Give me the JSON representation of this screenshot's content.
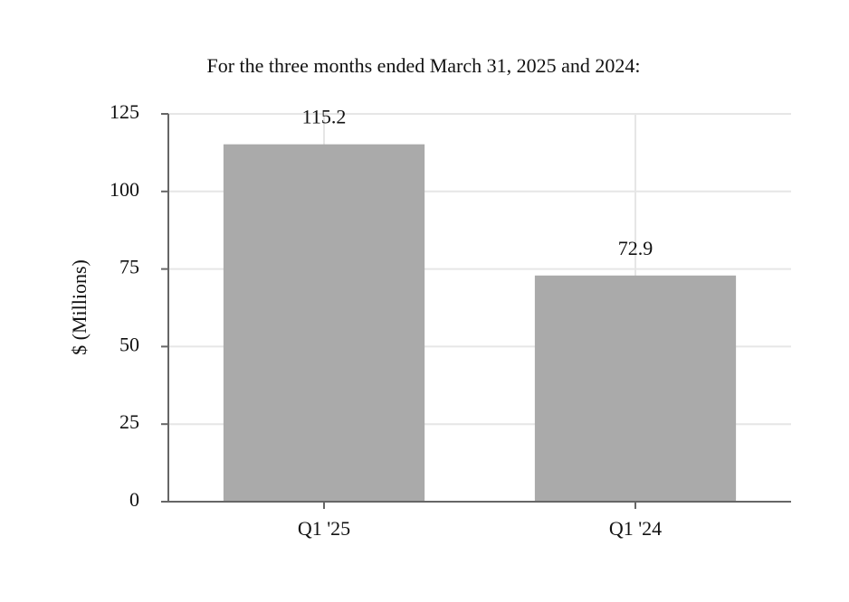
{
  "chart_data": {
    "type": "bar",
    "title": "For the three months ended March 31, 2025 and 2024:",
    "y_label": "$ (Millions)",
    "categories": [
      "Q1 '25",
      "Q1 '24"
    ],
    "values": [
      115.2,
      72.9
    ],
    "color": "#aaaaaa",
    "ylim": [
      0,
      125
    ],
    "yticks": [
      0,
      25,
      50,
      75,
      100,
      125
    ],
    "grid": true
  }
}
